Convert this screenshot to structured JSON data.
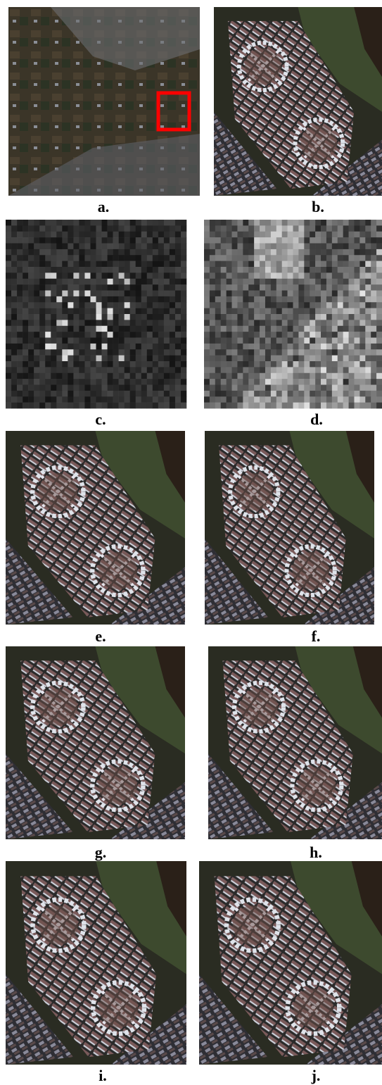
{
  "panels": [
    {
      "label": "a."
    },
    {
      "label": "b."
    },
    {
      "label": "c."
    },
    {
      "label": "d."
    },
    {
      "label": "e."
    },
    {
      "label": "f."
    },
    {
      "label": "g."
    },
    {
      "label": "h."
    },
    {
      "label": "i."
    },
    {
      "label": "j."
    }
  ]
}
